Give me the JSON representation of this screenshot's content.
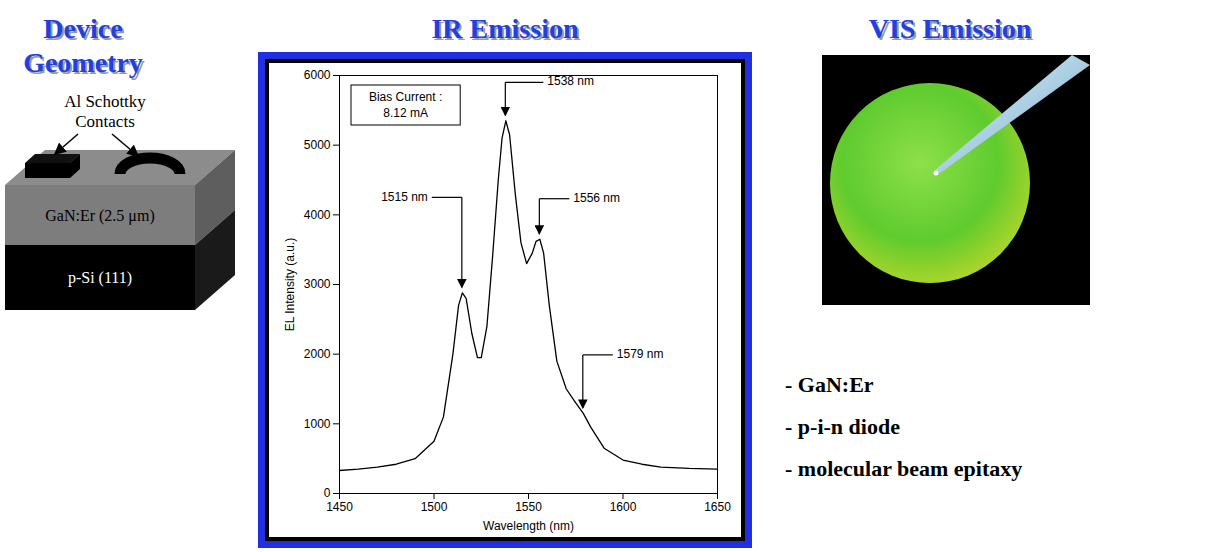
{
  "slide": {
    "titles": {
      "geometry": "Device Geometry",
      "vis": "VIS Emission"
    },
    "device": {
      "contacts_label": "Al Schottky Contacts",
      "layers": [
        "GaN:Er (2.5 μm)",
        "p-Si (111)"
      ]
    },
    "bullets": [
      "- GaN:Er",
      "- p-i-n diode",
      "- molecular beam epitaxy"
    ]
  },
  "chart_data": {
    "type": "line",
    "title": "IR Emission",
    "x_label": "Wavelength (nm)",
    "y_label": "EL Intensity (a.u.)",
    "color": "#000000",
    "grid": false,
    "xlim": [
      1450,
      1650
    ],
    "ylim": [
      0,
      6000
    ],
    "xticks": [
      1450,
      1500,
      1550,
      1600,
      1650
    ],
    "yticks": [
      0,
      1000,
      2000,
      3000,
      4000,
      5000,
      6000
    ],
    "x": [
      1450,
      1460,
      1470,
      1480,
      1490,
      1500,
      1505,
      1510,
      1513,
      1515,
      1517,
      1520,
      1523,
      1525,
      1528,
      1531,
      1534,
      1536,
      1538,
      1540,
      1543,
      1546,
      1549,
      1552,
      1554,
      1556,
      1558,
      1561,
      1565,
      1570,
      1575,
      1579,
      1583,
      1590,
      1600,
      1610,
      1620,
      1635,
      1650
    ],
    "values": [
      330,
      350,
      380,
      420,
      500,
      750,
      1100,
      2000,
      2700,
      2880,
      2800,
      2300,
      1950,
      1950,
      2400,
      3400,
      4500,
      5100,
      5350,
      5150,
      4300,
      3600,
      3300,
      3450,
      3620,
      3650,
      3450,
      2700,
      1900,
      1500,
      1300,
      1150,
      950,
      650,
      480,
      420,
      380,
      360,
      350
    ],
    "annotations": [
      {
        "label": "1515 nm",
        "x": 1515,
        "y": 2880
      },
      {
        "label": "1538 nm",
        "x": 1538,
        "y": 5350
      },
      {
        "label": "1556 nm",
        "x": 1556,
        "y": 3650
      },
      {
        "label": "1579 nm",
        "x": 1579,
        "y": 1150
      }
    ],
    "text_box": [
      "Bias Current :",
      "8.12 mA"
    ]
  }
}
